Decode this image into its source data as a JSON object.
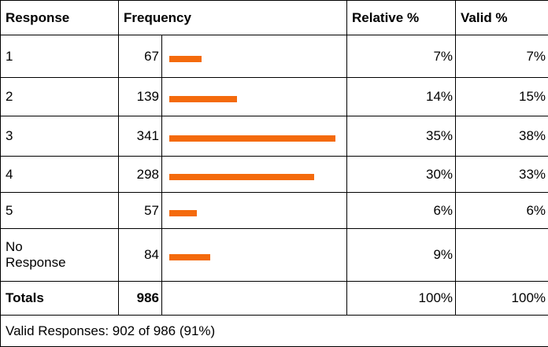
{
  "table": {
    "columns": [
      "Response",
      "Frequency",
      "Relative %",
      "Valid %"
    ],
    "rows": [
      {
        "response": "1",
        "frequency": 67,
        "relative": "7%",
        "valid": "7%"
      },
      {
        "response": "2",
        "frequency": 139,
        "relative": "14%",
        "valid": "15%"
      },
      {
        "response": "3",
        "frequency": 341,
        "relative": "35%",
        "valid": "38%"
      },
      {
        "response": "4",
        "frequency": 298,
        "relative": "30%",
        "valid": "33%"
      },
      {
        "response": "5",
        "frequency": 57,
        "relative": "6%",
        "valid": "6%"
      },
      {
        "response": "No Response",
        "frequency": 84,
        "relative": "9%"
      }
    ],
    "totals": {
      "label": "Totals",
      "frequency": 986,
      "relative": "100%",
      "valid": "100%"
    },
    "bar_color": "#f46a0c",
    "footer": "Valid Responses: 902 of 986 (91%)"
  }
}
